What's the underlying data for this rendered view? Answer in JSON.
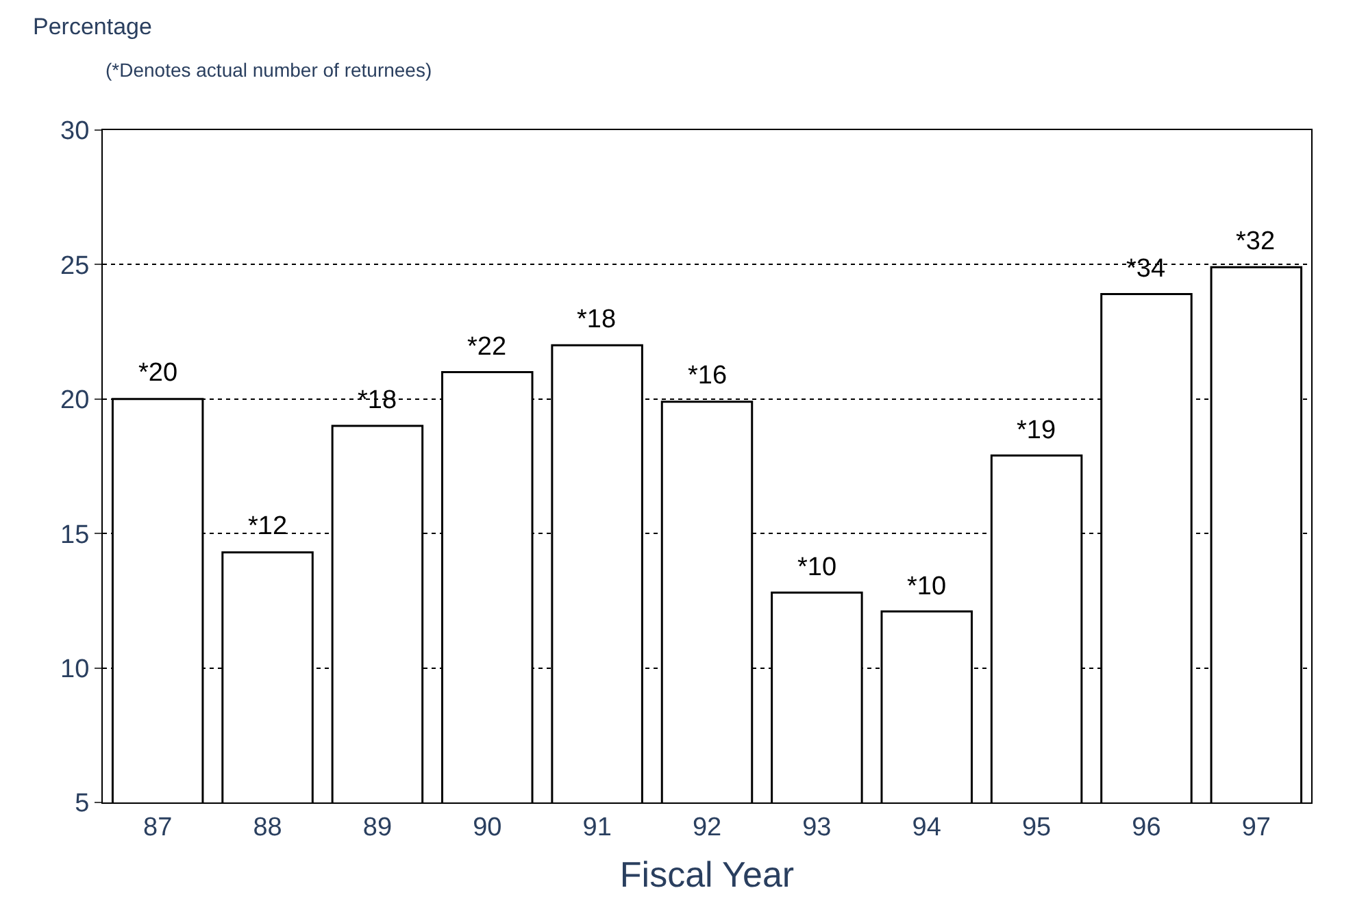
{
  "chart_data": {
    "type": "bar",
    "ylabel": "Percentage",
    "subtitle": "(*Denotes actual number of returnees)",
    "xlabel": "Fiscal Year",
    "categories": [
      "87",
      "88",
      "89",
      "90",
      "91",
      "92",
      "93",
      "94",
      "95",
      "96",
      "97"
    ],
    "values": [
      20.0,
      14.3,
      19.0,
      21.0,
      22.0,
      19.9,
      12.8,
      12.1,
      17.9,
      23.9,
      24.9
    ],
    "annotations": [
      {
        "text": "*20",
        "x": "87",
        "y": 20.0
      },
      {
        "text": "*12",
        "x": "88",
        "y": 14.3
      },
      {
        "text": "*18",
        "x": "89",
        "y": 19.0
      },
      {
        "text": "*22",
        "x": "90",
        "y": 21.0
      },
      {
        "text": "*18",
        "x": "91",
        "y": 22.0
      },
      {
        "text": "*16",
        "x": "92",
        "y": 19.9
      },
      {
        "text": "*10",
        "x": "93",
        "y": 12.8
      },
      {
        "text": "*10",
        "x": "94",
        "y": 12.1
      },
      {
        "text": "*19",
        "x": "95",
        "y": 17.9
      },
      {
        "text": "*34",
        "x": "96",
        "y": 23.9
      },
      {
        "text": "*32",
        "x": "97",
        "y": 24.9
      }
    ],
    "color": "#ffffff",
    "ylim": [
      5,
      30
    ],
    "yticks": [
      5,
      10,
      15,
      20,
      25,
      30
    ],
    "grid": "y"
  }
}
